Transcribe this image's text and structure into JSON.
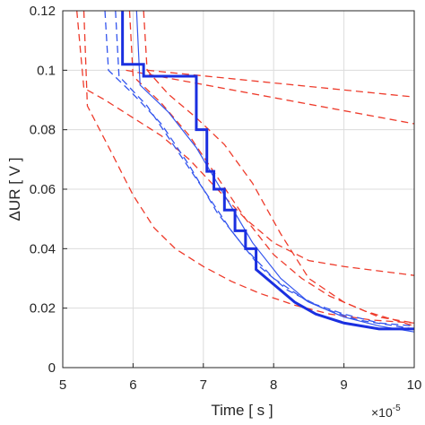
{
  "chart_data": {
    "type": "line",
    "x_label": "Time [ s ]",
    "y_label": "ΔUR [ V ]",
    "x_multiplier": {
      "base": "×10",
      "exponent": "-5"
    },
    "xlim": [
      5,
      10
    ],
    "ylim": [
      0,
      0.12
    ],
    "xticks": [
      5,
      6,
      7,
      8,
      9,
      10
    ],
    "yticks": [
      0,
      0.02,
      0.04,
      0.06,
      0.08,
      0.1,
      0.12
    ],
    "grid": true,
    "series": [
      {
        "color": "#ee3b2b",
        "style": "dashed",
        "width": 1.3,
        "x": [
          6.2,
          10
        ],
        "values": [
          0.1,
          0.091
        ]
      },
      {
        "color": "#ee3b2b",
        "style": "dashed",
        "width": 1.3,
        "x": [
          5.9,
          10
        ],
        "values": [
          0.1,
          0.082
        ]
      },
      {
        "color": "#ee3b2b",
        "style": "dashed",
        "width": 1.3,
        "x": [
          5.2,
          5.3,
          5.6,
          6.0,
          6.4,
          6.8,
          7.2,
          7.6,
          8.0,
          8.5,
          9.0,
          10
        ],
        "values": [
          0.12,
          0.094,
          0.09,
          0.084,
          0.078,
          0.07,
          0.06,
          0.05,
          0.042,
          0.036,
          0.034,
          0.031
        ]
      },
      {
        "color": "#ee3b2b",
        "style": "dashed",
        "width": 1.3,
        "x": [
          5.3,
          5.35,
          5.7,
          6.0,
          6.3,
          6.6,
          7.0,
          7.4,
          7.8,
          8.3,
          8.8,
          9.4,
          10
        ],
        "values": [
          0.12,
          0.088,
          0.072,
          0.058,
          0.047,
          0.04,
          0.034,
          0.029,
          0.025,
          0.021,
          0.018,
          0.016,
          0.015
        ]
      },
      {
        "color": "#ee3b2b",
        "style": "dashed",
        "width": 1.3,
        "x": [
          6.15,
          6.2,
          6.5,
          6.9,
          7.3,
          7.7,
          8.1,
          8.5,
          9.0,
          9.5,
          10
        ],
        "values": [
          0.12,
          0.1,
          0.092,
          0.084,
          0.075,
          0.062,
          0.045,
          0.03,
          0.022,
          0.017,
          0.015
        ]
      },
      {
        "color": "#ee3b2b",
        "style": "dashed",
        "width": 1.3,
        "x": [
          5.95,
          6.0,
          6.4,
          6.8,
          7.2,
          7.6,
          8.0,
          8.4,
          8.8,
          9.3,
          10
        ],
        "values": [
          0.12,
          0.098,
          0.089,
          0.078,
          0.064,
          0.05,
          0.038,
          0.03,
          0.024,
          0.019,
          0.014
        ]
      },
      {
        "color": "#3355ee",
        "style": "dashed",
        "width": 1.3,
        "x": [
          5.6,
          5.65,
          6.0,
          6.4,
          6.8,
          7.2,
          7.6,
          8.0,
          8.5,
          9.0,
          9.5,
          10
        ],
        "values": [
          0.12,
          0.1,
          0.092,
          0.082,
          0.068,
          0.052,
          0.04,
          0.03,
          0.022,
          0.018,
          0.015,
          0.014
        ]
      },
      {
        "color": "#3355ee",
        "style": "dashed",
        "width": 1.3,
        "x": [
          5.75,
          5.8,
          6.2,
          6.6,
          7.0,
          7.4,
          7.8,
          8.2,
          8.7,
          9.2,
          10
        ],
        "values": [
          0.12,
          0.098,
          0.088,
          0.074,
          0.06,
          0.046,
          0.034,
          0.026,
          0.02,
          0.016,
          0.013
        ]
      },
      {
        "color": "#3355ee",
        "style": "solid",
        "width": 1.2,
        "x": [
          6.05,
          6.1,
          6.5,
          6.9,
          7.3,
          7.7,
          8.1,
          8.5,
          9.0,
          9.5,
          10
        ],
        "values": [
          0.12,
          0.095,
          0.086,
          0.074,
          0.058,
          0.042,
          0.03,
          0.022,
          0.017,
          0.014,
          0.012
        ]
      },
      {
        "color": "#1a2fe0",
        "style": "solid",
        "width": 3,
        "x": [
          5.85,
          5.85,
          6.15,
          6.15,
          6.9,
          6.9,
          7.05,
          7.05,
          7.15,
          7.15,
          7.3,
          7.3,
          7.45,
          7.45,
          7.6,
          7.6,
          7.75,
          7.75,
          8.0,
          8.3,
          8.6,
          9.0,
          9.5,
          10
        ],
        "values": [
          0.12,
          0.102,
          0.102,
          0.098,
          0.098,
          0.08,
          0.08,
          0.066,
          0.066,
          0.06,
          0.06,
          0.053,
          0.053,
          0.046,
          0.046,
          0.04,
          0.04,
          0.033,
          0.028,
          0.022,
          0.018,
          0.015,
          0.013,
          0.013
        ]
      }
    ]
  }
}
